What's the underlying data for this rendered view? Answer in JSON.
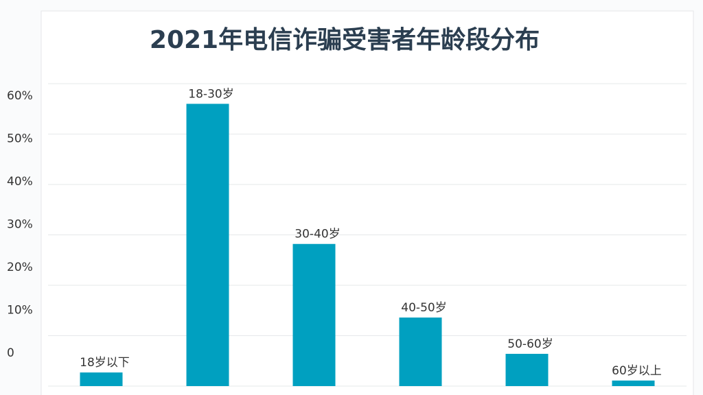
{
  "chart_data": {
    "type": "bar",
    "title": "2021年电信诈骗受害者年龄段分布",
    "categories": [
      "18岁以下",
      "18-30岁",
      "30-40岁",
      "40-50岁",
      "50-60岁",
      "60岁以上"
    ],
    "values": [
      2.7,
      56,
      28.2,
      13.6,
      6.4,
      1.1
    ],
    "color": "#00a0c0",
    "ylim": [
      0,
      60
    ],
    "yticks": [
      0,
      {
        "value": 10,
        "label": "10%"
      },
      {
        "value": 20,
        "label": "20%"
      },
      {
        "value": 30,
        "label": "30%"
      },
      {
        "value": 40,
        "label": "40%"
      },
      {
        "value": 50,
        "label": "50%"
      },
      {
        "value": 60,
        "label": "60%"
      }
    ],
    "grid": true
  }
}
